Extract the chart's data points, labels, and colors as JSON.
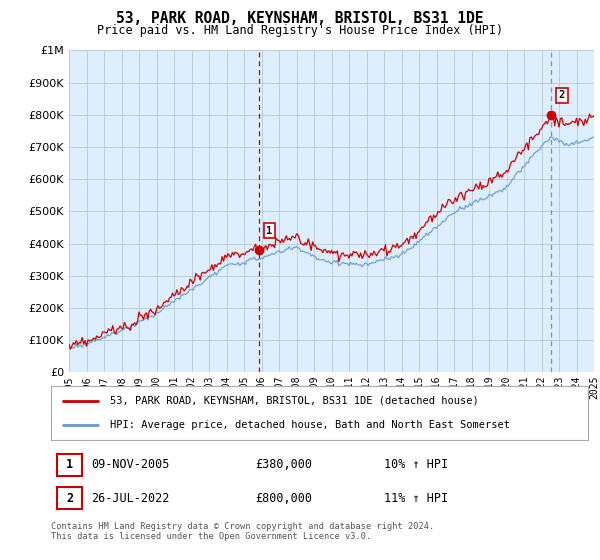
{
  "title": "53, PARK ROAD, KEYNSHAM, BRISTOL, BS31 1DE",
  "subtitle": "Price paid vs. HM Land Registry's House Price Index (HPI)",
  "ytick_values": [
    0,
    100000,
    200000,
    300000,
    400000,
    500000,
    600000,
    700000,
    800000,
    900000,
    1000000
  ],
  "ylim": [
    0,
    1000000
  ],
  "sale1_date_num": 2005.86,
  "sale1_price": 380000,
  "sale1_label": "1",
  "sale2_date_num": 2022.57,
  "sale2_price": 800000,
  "sale2_label": "2",
  "legend_line1": "53, PARK ROAD, KEYNSHAM, BRISTOL, BS31 1DE (detached house)",
  "legend_line2": "HPI: Average price, detached house, Bath and North East Somerset",
  "table_row1": [
    "1",
    "09-NOV-2005",
    "£380,000",
    "10% ↑ HPI"
  ],
  "table_row2": [
    "2",
    "26-JUL-2022",
    "£800,000",
    "11% ↑ HPI"
  ],
  "footer": "Contains HM Land Registry data © Crown copyright and database right 2024.\nThis data is licensed under the Open Government Licence v3.0.",
  "bg_color": "#ffffff",
  "plot_bg_color": "#ddeeff",
  "grid_color": "#bbccdd",
  "line_price_color": "#cc0000",
  "line_hpi_color": "#6699cc",
  "dashed1_color": "#cc0000",
  "dashed2_color": "#6699cc",
  "sale_marker_color": "#cc0000",
  "xmin": 1995,
  "xmax": 2025
}
